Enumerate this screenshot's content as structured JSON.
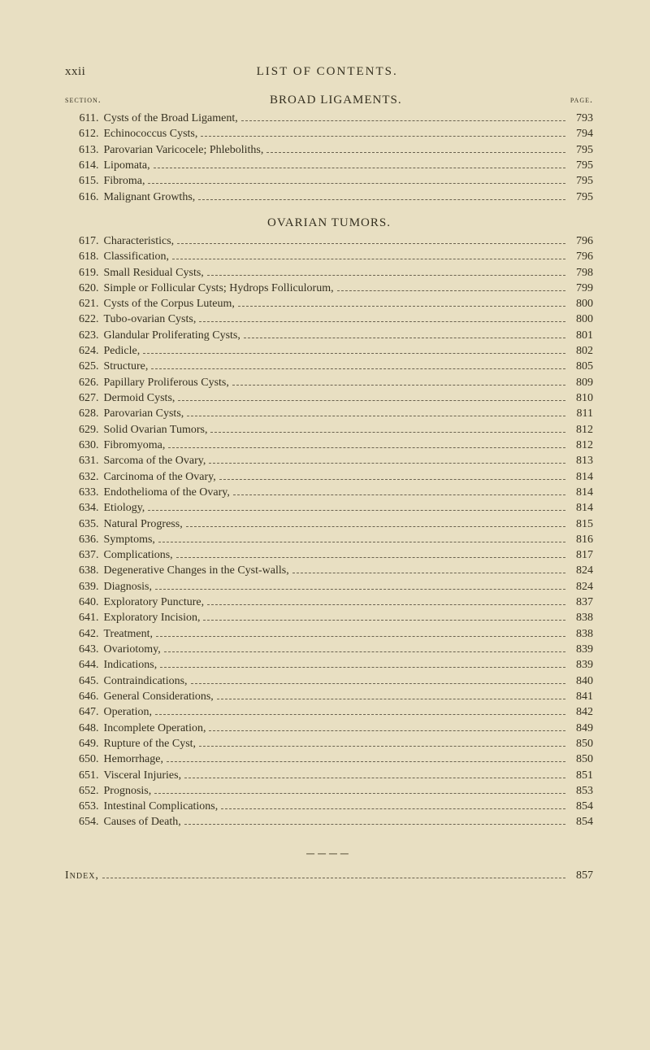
{
  "page": {
    "roman_numeral": "xxii",
    "running_title": "LIST OF CONTENTS.",
    "column_left": "section.",
    "column_right": "page.",
    "colors": {
      "background": "#e8dfc2",
      "text": "#353020",
      "leader": "#6b6350"
    },
    "fonts": {
      "body_family": "Times New Roman",
      "body_size_pt": 14,
      "heading_size_pt": 15,
      "smallcaps_size_pt": 12
    }
  },
  "sections": [
    {
      "heading": "BROAD LIGAMENTS.",
      "heading_inline_with_labels": true,
      "entries": [
        {
          "num": "611",
          "title": "Cysts of the Broad Ligament,",
          "page": "793"
        },
        {
          "num": "612",
          "title": "Echinococcus Cysts,",
          "page": "794"
        },
        {
          "num": "613",
          "title": "Parovarian Varicocele; Phleboliths,",
          "page": "795"
        },
        {
          "num": "614",
          "title": "Lipomata,",
          "page": "795"
        },
        {
          "num": "615",
          "title": "Fibroma,",
          "page": "795"
        },
        {
          "num": "616",
          "title": "Malignant Growths,",
          "page": "795"
        }
      ]
    },
    {
      "heading": "OVARIAN TUMORS.",
      "heading_inline_with_labels": false,
      "entries": [
        {
          "num": "617",
          "title": "Characteristics,",
          "page": "796"
        },
        {
          "num": "618",
          "title": "Classification,",
          "page": "796"
        },
        {
          "num": "619",
          "title": "Small Residual Cysts,",
          "page": "798"
        },
        {
          "num": "620",
          "title": "Simple or Follicular Cysts; Hydrops Folliculorum,",
          "page": "799"
        },
        {
          "num": "621",
          "title": "Cysts of the Corpus Luteum,",
          "page": "800"
        },
        {
          "num": "622",
          "title": "Tubo-ovarian Cysts,",
          "page": "800"
        },
        {
          "num": "623",
          "title": "Glandular Proliferating Cysts,",
          "page": "801"
        },
        {
          "num": "624",
          "title": "Pedicle,",
          "page": "802"
        },
        {
          "num": "625",
          "title": "Structure,",
          "page": "805"
        },
        {
          "num": "626",
          "title": "Papillary Proliferous Cysts,",
          "page": "809"
        },
        {
          "num": "627",
          "title": "Dermoid Cysts,",
          "page": "810"
        },
        {
          "num": "628",
          "title": "Parovarian Cysts,",
          "page": "811"
        },
        {
          "num": "629",
          "title": "Solid Ovarian Tumors,",
          "page": "812"
        },
        {
          "num": "630",
          "title": "Fibromyoma,",
          "page": "812"
        },
        {
          "num": "631",
          "title": "Sarcoma of the Ovary,",
          "page": "813"
        },
        {
          "num": "632",
          "title": "Carcinoma of the Ovary,",
          "page": "814"
        },
        {
          "num": "633",
          "title": "Endothelioma of the Ovary,",
          "page": "814"
        },
        {
          "num": "634",
          "title": "Etiology,",
          "page": "814"
        },
        {
          "num": "635",
          "title": "Natural Progress,",
          "page": "815"
        },
        {
          "num": "636",
          "title": "Symptoms,",
          "page": "816"
        },
        {
          "num": "637",
          "title": "Complications,",
          "page": "817"
        },
        {
          "num": "638",
          "title": "Degenerative Changes in the Cyst-walls,",
          "page": "824"
        },
        {
          "num": "639",
          "title": "Diagnosis,",
          "page": "824"
        },
        {
          "num": "640",
          "title": "Exploratory Puncture,",
          "page": "837"
        },
        {
          "num": "641",
          "title": "Exploratory Incision,",
          "page": "838"
        },
        {
          "num": "642",
          "title": "Treatment,",
          "page": "838"
        },
        {
          "num": "643",
          "title": "Ovariotomy,",
          "page": "839"
        },
        {
          "num": "644",
          "title": "Indications,",
          "page": "839"
        },
        {
          "num": "645",
          "title": "Contraindications,",
          "page": "840"
        },
        {
          "num": "646",
          "title": "General Considerations,",
          "page": "841"
        },
        {
          "num": "647",
          "title": "Operation,",
          "page": "842"
        },
        {
          "num": "648",
          "title": "Incomplete Operation,",
          "page": "849"
        },
        {
          "num": "649",
          "title": "Rupture of the Cyst,",
          "page": "850"
        },
        {
          "num": "650",
          "title": "Hemorrhage,",
          "page": "850"
        },
        {
          "num": "651",
          "title": "Visceral Injuries,",
          "page": "851"
        },
        {
          "num": "652",
          "title": "Prognosis,",
          "page": "853"
        },
        {
          "num": "653",
          "title": "Intestinal Complications,",
          "page": "854"
        },
        {
          "num": "654",
          "title": "Causes of Death,",
          "page": "854"
        }
      ]
    }
  ],
  "index": {
    "label": "Index,",
    "page": "857"
  }
}
